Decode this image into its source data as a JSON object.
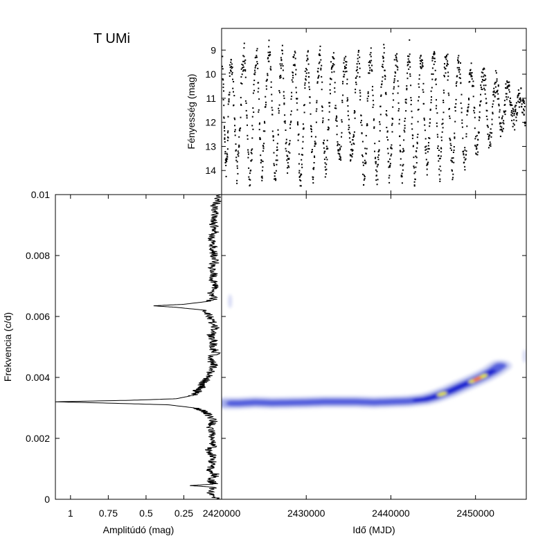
{
  "title": "T UMi",
  "chart_data": [
    {
      "id": "light-curve",
      "type": "scatter",
      "xlabel": "Idő (MJD)",
      "ylabel": "Fényesség (mag)",
      "xlim": [
        2420000,
        2456000
      ],
      "ylim": [
        15,
        8.1
      ],
      "yticks": [
        "9",
        "10",
        "11",
        "12",
        "13",
        "14"
      ],
      "grid": false,
      "color": "#000000",
      "note_on_points": "dense irregular Mira-type light curve, roughly 9-15 mag range with ~310 d period shortening towards ~240 d after 2445000",
      "series": [
        {
          "points": [
            [
              2420100,
              9.3
            ],
            [
              2420300,
              12.0
            ],
            [
              2420500,
              14.0
            ],
            [
              2420700,
              13.2
            ],
            [
              2420900,
              10.5
            ],
            [
              2421200,
              9.2
            ],
            [
              2421500,
              11.5
            ],
            [
              2421800,
              14.2
            ],
            [
              2422100,
              12.8
            ],
            [
              2422400,
              10.0
            ],
            [
              2422700,
              9.1
            ],
            [
              2423000,
              11.9
            ],
            [
              2423300,
              14.6
            ],
            [
              2423600,
              13.0
            ],
            [
              2423900,
              9.8
            ],
            [
              2424200,
              9.3
            ],
            [
              2424500,
              12.5
            ],
            [
              2424800,
              14.3
            ],
            [
              2425100,
              12.0
            ],
            [
              2425400,
              9.7
            ],
            [
              2425700,
              8.8
            ],
            [
              2426000,
              11.8
            ],
            [
              2426300,
              14.5
            ],
            [
              2426600,
              13.1
            ],
            [
              2426900,
              10.1
            ],
            [
              2427200,
              9.0
            ],
            [
              2427500,
              12.2
            ],
            [
              2427800,
              14.0
            ],
            [
              2428100,
              12.6
            ],
            [
              2428400,
              9.9
            ],
            [
              2428700,
              9.2
            ],
            [
              2429000,
              12.0
            ],
            [
              2429300,
              14.8
            ],
            [
              2429600,
              13.0
            ],
            [
              2429900,
              10.3
            ],
            [
              2430200,
              9.0
            ],
            [
              2430500,
              11.6
            ],
            [
              2430800,
              14.3
            ],
            [
              2431100,
              12.8
            ],
            [
              2431400,
              9.8
            ],
            [
              2431700,
              9.2
            ],
            [
              2432000,
              12.3
            ],
            [
              2432300,
              14.1
            ],
            [
              2432600,
              12.4
            ],
            [
              2432900,
              10.0
            ],
            [
              2433200,
              9.1
            ],
            [
              2433500,
              11.7
            ],
            [
              2433800,
              13.3
            ],
            [
              2434100,
              13.2
            ],
            [
              2434400,
              9.8
            ],
            [
              2434700,
              9.3
            ],
            [
              2435000,
              12.1
            ],
            [
              2435300,
              13.4
            ],
            [
              2435600,
              12.7
            ],
            [
              2435900,
              10.2
            ],
            [
              2436200,
              9.0
            ],
            [
              2436500,
              11.9
            ],
            [
              2436800,
              14.4
            ],
            [
              2437100,
              12.9
            ],
            [
              2437400,
              10.0
            ],
            [
              2437700,
              9.2
            ],
            [
              2438000,
              12.0
            ],
            [
              2438300,
              14.6
            ],
            [
              2438600,
              13.2
            ],
            [
              2438900,
              10.1
            ],
            [
              2439200,
              9.1
            ],
            [
              2439500,
              11.8
            ],
            [
              2439800,
              14.2
            ],
            [
              2440100,
              12.7
            ],
            [
              2440400,
              9.9
            ],
            [
              2440700,
              9.2
            ],
            [
              2441000,
              12.2
            ],
            [
              2441300,
              14.3
            ],
            [
              2441600,
              12.5
            ],
            [
              2441900,
              10.2
            ],
            [
              2442200,
              9.0
            ],
            [
              2442500,
              12.0
            ],
            [
              2442800,
              14.5
            ],
            [
              2443100,
              12.9
            ],
            [
              2443400,
              9.8
            ],
            [
              2443700,
              9.3
            ],
            [
              2444000,
              12.3
            ],
            [
              2444300,
              14.1
            ],
            [
              2444600,
              12.4
            ],
            [
              2444900,
              9.7
            ],
            [
              2445200,
              9.4
            ],
            [
              2445500,
              12.5
            ],
            [
              2445800,
              14.2
            ],
            [
              2446100,
              12.0
            ],
            [
              2446400,
              9.6
            ],
            [
              2446700,
              9.5
            ],
            [
              2447000,
              12.6
            ],
            [
              2447300,
              14.3
            ],
            [
              2447600,
              11.8
            ],
            [
              2447900,
              9.4
            ],
            [
              2448200,
              9.8
            ],
            [
              2448500,
              13.0
            ],
            [
              2448800,
              13.6
            ],
            [
              2449100,
              11.2
            ],
            [
              2449400,
              9.8
            ],
            [
              2449700,
              10.2
            ],
            [
              2450000,
              12.9
            ],
            [
              2450300,
              13.1
            ],
            [
              2450600,
              10.9
            ],
            [
              2450900,
              9.9
            ],
            [
              2451200,
              10.5
            ],
            [
              2451500,
              12.6
            ],
            [
              2451800,
              12.8
            ],
            [
              2452100,
              11.0
            ],
            [
              2452400,
              10.3
            ],
            [
              2452700,
              10.9
            ],
            [
              2453000,
              12.4
            ],
            [
              2453300,
              12.1
            ],
            [
              2453600,
              10.8
            ],
            [
              2453900,
              10.6
            ],
            [
              2454200,
              11.3
            ],
            [
              2454500,
              12.0
            ],
            [
              2454800,
              11.6
            ],
            [
              2455100,
              10.9
            ],
            [
              2455400,
              11.0
            ],
            [
              2455700,
              11.5
            ],
            [
              2455900,
              11.8
            ]
          ]
        }
      ]
    },
    {
      "id": "amplitude-spectrum",
      "type": "line",
      "xlabel": "Amplitúdó (mag)",
      "ylabel": "Frekvencia (c/d)",
      "xlim": [
        1.1,
        0.0
      ],
      "ylim": [
        0,
        0.01
      ],
      "xticks": [
        "1",
        "0.75",
        "0.5",
        "0.25"
      ],
      "yticks": [
        "0",
        "0.002",
        "0.004",
        "0.006",
        "0.008",
        "0.01"
      ],
      "grid": false,
      "color": "#000000",
      "series": [
        {
          "frequency": [
            0.0,
            0.0002,
            0.0004,
            0.00045,
            0.0005,
            0.0006,
            0.0008,
            0.001,
            0.0012,
            0.0014,
            0.0016,
            0.0018,
            0.002,
            0.0022,
            0.0024,
            0.0026,
            0.0028,
            0.0029,
            0.003,
            0.0031,
            0.00315,
            0.0032,
            0.00325,
            0.0033,
            0.0034,
            0.0035,
            0.0036,
            0.0037,
            0.0038,
            0.0039,
            0.004,
            0.0042,
            0.0044,
            0.0046,
            0.0048,
            0.005,
            0.0052,
            0.0054,
            0.0056,
            0.0058,
            0.006,
            0.0062,
            0.0063,
            0.00635,
            0.0064,
            0.0065,
            0.0066,
            0.0068,
            0.007,
            0.0072,
            0.0074,
            0.0076,
            0.0078,
            0.008,
            0.0082,
            0.0084,
            0.0086,
            0.0088,
            0.009,
            0.0092,
            0.0094,
            0.0096,
            0.0098,
            0.01
          ],
          "amplitude": [
            0.03,
            0.08,
            0.06,
            0.21,
            0.05,
            0.07,
            0.04,
            0.08,
            0.06,
            0.05,
            0.09,
            0.05,
            0.07,
            0.06,
            0.08,
            0.05,
            0.09,
            0.12,
            0.18,
            0.35,
            0.7,
            1.1,
            0.6,
            0.3,
            0.2,
            0.15,
            0.17,
            0.12,
            0.14,
            0.1,
            0.09,
            0.07,
            0.05,
            0.08,
            0.04,
            0.06,
            0.05,
            0.07,
            0.04,
            0.06,
            0.08,
            0.1,
            0.3,
            0.45,
            0.25,
            0.08,
            0.05,
            0.07,
            0.04,
            0.06,
            0.05,
            0.07,
            0.04,
            0.05,
            0.06,
            0.05,
            0.07,
            0.04,
            0.05,
            0.06,
            0.04,
            0.05,
            0.03,
            0.02
          ]
        }
      ]
    },
    {
      "id": "time-frequency-map",
      "type": "heatmap",
      "xlabel": "Idő (MJD)",
      "xlim": [
        2420000,
        2456000
      ],
      "ylim": [
        0,
        0.01
      ],
      "xticks": [
        "2420000",
        "2430000",
        "2440000",
        "2450000"
      ],
      "grid": false,
      "colorscale": [
        "#d8dcf5",
        "#a6aeea",
        "#5560dd",
        "#1a22d0",
        "#e8e80a",
        "#ff2000"
      ],
      "ridge": {
        "time": [
          2420500,
          2422000,
          2424000,
          2426000,
          2428000,
          2430000,
          2432000,
          2434000,
          2436000,
          2438000,
          2440000,
          2442000,
          2444000,
          2445000,
          2446000,
          2447000,
          2448000,
          2449000,
          2450000,
          2451000,
          2452000,
          2453000
        ],
        "frequency": [
          0.00315,
          0.00315,
          0.00318,
          0.00316,
          0.00317,
          0.00318,
          0.0032,
          0.0032,
          0.0032,
          0.00318,
          0.0032,
          0.00322,
          0.00328,
          0.00335,
          0.00345,
          0.00355,
          0.00368,
          0.0038,
          0.00392,
          0.00405,
          0.0042,
          0.0044
        ],
        "intensity": [
          0.25,
          0.35,
          0.3,
          0.35,
          0.3,
          0.35,
          0.3,
          0.35,
          0.4,
          0.3,
          0.35,
          0.4,
          0.5,
          0.55,
          0.75,
          0.6,
          0.5,
          0.55,
          0.85,
          0.75,
          0.45,
          0.3
        ]
      },
      "extra_blobs": [
        {
          "time": 2421000,
          "frequency": 0.0065,
          "intensity": 0.15
        },
        {
          "time": 2455800,
          "frequency": 0.0047,
          "intensity": 0.12
        }
      ]
    }
  ]
}
